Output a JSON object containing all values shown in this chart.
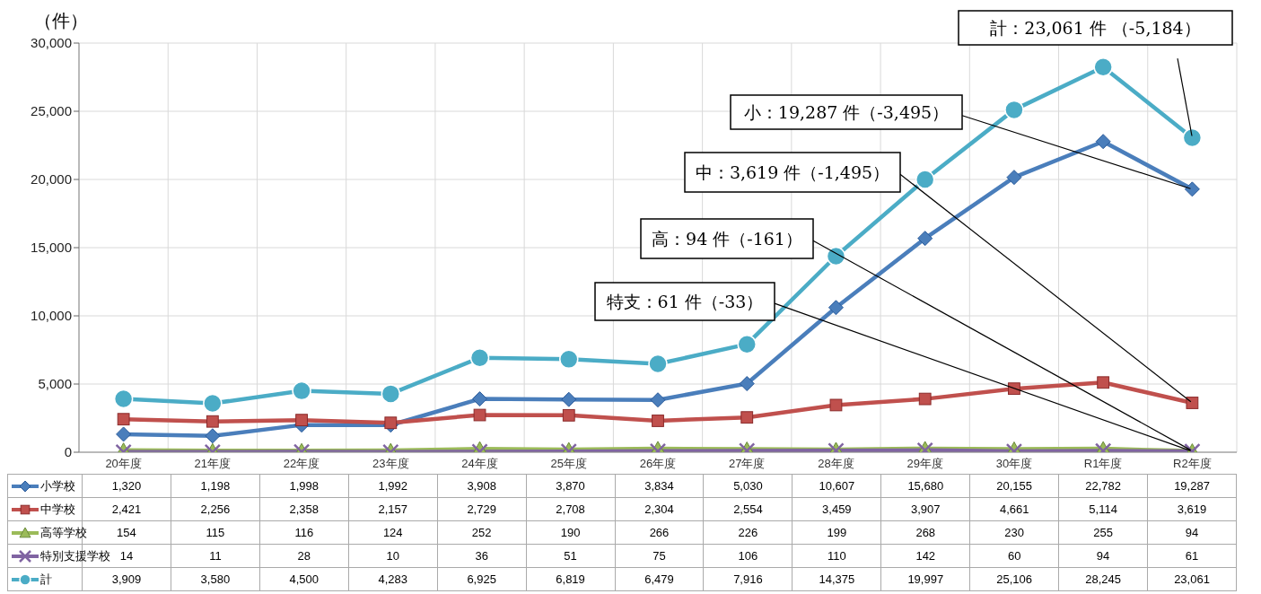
{
  "chart_data": {
    "type": "line",
    "ylabel": "（件）",
    "categories": [
      "20年度",
      "21年度",
      "22年度",
      "23年度",
      "24年度",
      "25年度",
      "26年度",
      "27年度",
      "28年度",
      "29年度",
      "30年度",
      "R1年度",
      "R2年度"
    ],
    "series": [
      {
        "name": "小学校",
        "color": "#4a7ebb",
        "marker": "diamond",
        "values": [
          1320,
          1198,
          1998,
          1992,
          3908,
          3870,
          3834,
          5030,
          10607,
          15680,
          20155,
          22782,
          19287
        ],
        "value_labels": [
          "1,320",
          "1,198",
          "1,998",
          "1,992",
          "3,908",
          "3,870",
          "3,834",
          "5,030",
          "10,607",
          "15,680",
          "20,155",
          "22,782",
          "19,287"
        ]
      },
      {
        "name": "中学校",
        "color": "#c0504d",
        "marker": "square",
        "values": [
          2421,
          2256,
          2358,
          2157,
          2729,
          2708,
          2304,
          2554,
          3459,
          3907,
          4661,
          5114,
          3619
        ],
        "value_labels": [
          "2,421",
          "2,256",
          "2,358",
          "2,157",
          "2,729",
          "2,708",
          "2,304",
          "2,554",
          "3,459",
          "3,907",
          "4,661",
          "5,114",
          "3,619"
        ]
      },
      {
        "name": "高等学校",
        "color": "#9bbb59",
        "marker": "triangle",
        "values": [
          154,
          115,
          116,
          124,
          252,
          190,
          266,
          226,
          199,
          268,
          230,
          255,
          94
        ],
        "value_labels": [
          "154",
          "115",
          "116",
          "124",
          "252",
          "190",
          "266",
          "226",
          "199",
          "268",
          "230",
          "255",
          "94"
        ]
      },
      {
        "name": "特別支援学校",
        "color": "#8064a2",
        "marker": "cross",
        "values": [
          14,
          11,
          28,
          10,
          36,
          51,
          75,
          106,
          110,
          142,
          60,
          94,
          61
        ],
        "value_labels": [
          "14",
          "11",
          "28",
          "10",
          "36",
          "51",
          "75",
          "106",
          "110",
          "142",
          "60",
          "94",
          "61"
        ]
      },
      {
        "name": "計",
        "color": "#4bacc6",
        "marker": "circle",
        "values": [
          3909,
          3580,
          4500,
          4283,
          6925,
          6819,
          6479,
          7916,
          14375,
          19997,
          25106,
          28245,
          23061
        ],
        "value_labels": [
          "3,909",
          "3,580",
          "4,500",
          "4,283",
          "6,925",
          "6,819",
          "6,479",
          "7,916",
          "14,375",
          "19,997",
          "25,106",
          "28,245",
          "23,061"
        ]
      }
    ],
    "ylim": [
      0,
      30000
    ],
    "yticks": [
      {
        "value": 0,
        "label": "0"
      },
      {
        "value": 5000,
        "label": "5,000"
      },
      {
        "value": 10000,
        "label": "10,000"
      },
      {
        "value": 15000,
        "label": "15,000"
      },
      {
        "value": 20000,
        "label": "20,000"
      },
      {
        "value": 25000,
        "label": "25,000"
      },
      {
        "value": 30000,
        "label": "30,000"
      }
    ],
    "grid": true,
    "legend": "bottom",
    "line_style": "solid",
    "annotations": [
      {
        "text": "計：23,061 件 （-5,184）",
        "x": "R2年度",
        "y": 23061
      },
      {
        "text": "小：19,287 件（-3,495）",
        "x": "R2年度",
        "y": 19287
      },
      {
        "text": "中：3,619 件（-1,495）",
        "x": "R2年度",
        "y": 3619
      },
      {
        "text": "高：94 件（-161）",
        "x": "R2年度",
        "y": 94
      },
      {
        "text": "特支：61 件（-33）",
        "x": "R2年度",
        "y": 61
      }
    ]
  }
}
